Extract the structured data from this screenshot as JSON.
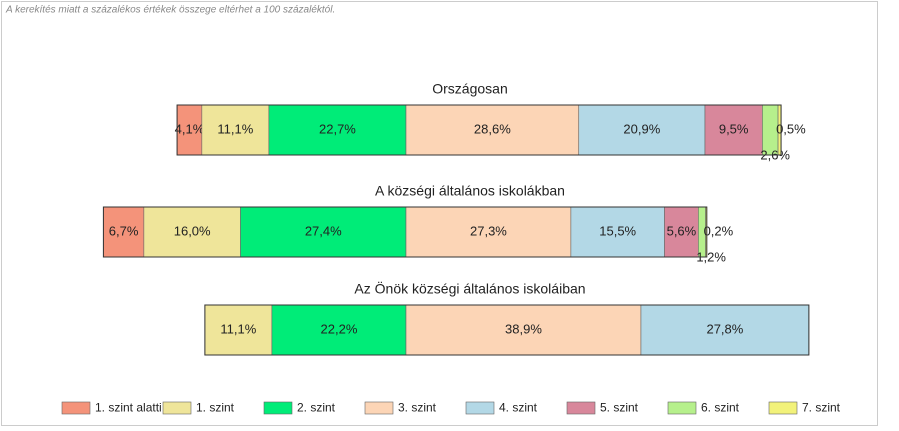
{
  "chart_data": {
    "type": "bar",
    "orientation": "horizontal",
    "stacked": true,
    "note": "A kerekítés miatt a százalékos értékek összege eltérhet a 100 százaléktól.",
    "categories": [
      "Országosan",
      "A községi általános iskolákban",
      "Az Önök községi általános iskoláiban"
    ],
    "legend": "bottom",
    "series": [
      {
        "name": "1. szint alatti",
        "color": "#f4937a",
        "values": [
          4.1,
          6.7,
          null
        ],
        "value_labels": [
          "4,1%",
          "6,7%",
          null
        ]
      },
      {
        "name": "1. szint",
        "color": "#efe59a",
        "values": [
          11.1,
          16.0,
          11.1
        ],
        "value_labels": [
          "11,1%",
          "16,0%",
          "11,1%"
        ]
      },
      {
        "name": "2. szint",
        "color": "#00ec78",
        "values": [
          22.7,
          27.4,
          22.2
        ],
        "value_labels": [
          "22,7%",
          "27,4%",
          "22,2%"
        ]
      },
      {
        "name": "3. szint",
        "color": "#fcd5b6",
        "values": [
          28.6,
          27.3,
          38.9
        ],
        "value_labels": [
          "28,6%",
          "27,3%",
          "38,9%"
        ]
      },
      {
        "name": "4. szint",
        "color": "#b3d8e6",
        "values": [
          20.9,
          15.5,
          27.8
        ],
        "value_labels": [
          "20,9%",
          "15,5%",
          "27,8%"
        ]
      },
      {
        "name": "5. szint",
        "color": "#d8879b",
        "values": [
          9.5,
          5.6,
          null
        ],
        "value_labels": [
          "9,5%",
          "5,6%",
          null
        ]
      },
      {
        "name": "6. szint",
        "color": "#b6f08c",
        "values": [
          2.6,
          1.2,
          null
        ],
        "value_labels": [
          "2,6%",
          "1,2%",
          null
        ]
      },
      {
        "name": "7. szint",
        "color": "#f2f27a",
        "values": [
          0.5,
          0.2,
          null
        ],
        "value_labels": [
          "0,5%",
          "0,2%",
          null
        ]
      }
    ]
  }
}
